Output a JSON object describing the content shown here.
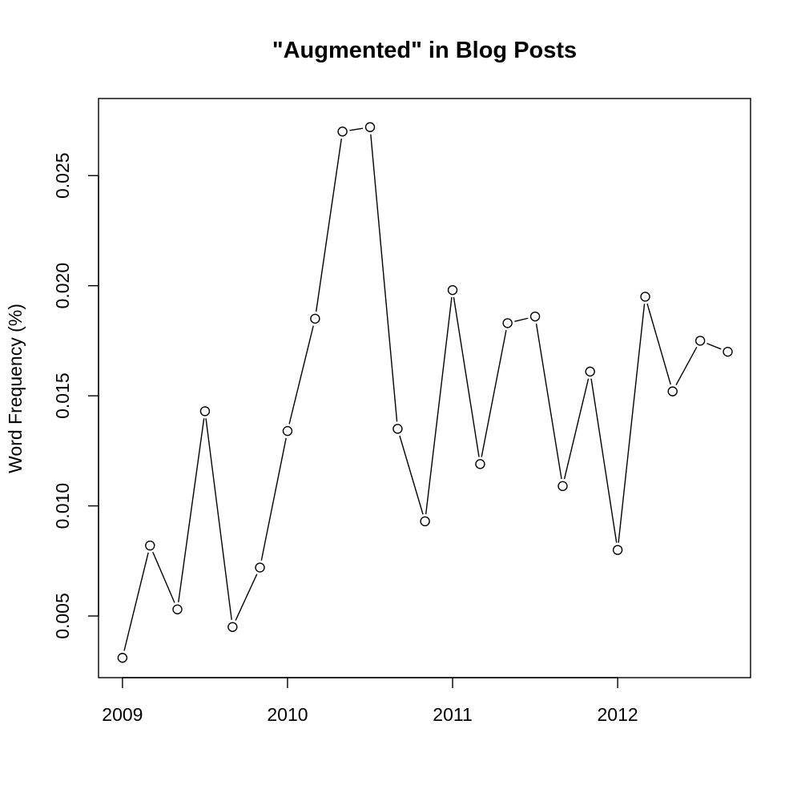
{
  "chart_data": {
    "type": "line",
    "title": "\"Augmented\" in Blog Posts",
    "xlabel": "",
    "ylabel": "Word Frequency (%)",
    "xlim": [
      2008.855,
      2012.805
    ],
    "ylim": [
      0.0022,
      0.0285
    ],
    "x_ticks": [
      2009,
      2010,
      2011,
      2012
    ],
    "x_tick_labels": [
      "2009",
      "2010",
      "2011",
      "2012"
    ],
    "y_ticks": [
      0.005,
      0.01,
      0.015,
      0.02,
      0.025
    ],
    "y_tick_labels": [
      "0.005",
      "0.010",
      "0.015",
      "0.020",
      "0.025"
    ],
    "grid": false,
    "legend": "none",
    "marker": "open-circle",
    "x": [
      2009.0,
      2009.167,
      2009.333,
      2009.5,
      2009.667,
      2009.833,
      2010.0,
      2010.167,
      2010.333,
      2010.5,
      2010.667,
      2010.833,
      2011.0,
      2011.167,
      2011.333,
      2011.5,
      2011.667,
      2011.833,
      2012.0,
      2012.167,
      2012.333,
      2012.5,
      2012.667
    ],
    "values": [
      0.0031,
      0.0082,
      0.0053,
      0.0143,
      0.0045,
      0.0072,
      0.0134,
      0.0185,
      0.027,
      0.0272,
      0.0135,
      0.0093,
      0.0198,
      0.0119,
      0.0183,
      0.0186,
      0.0109,
      0.0161,
      0.008,
      0.0195,
      0.0152,
      0.0175,
      0.017
    ]
  }
}
